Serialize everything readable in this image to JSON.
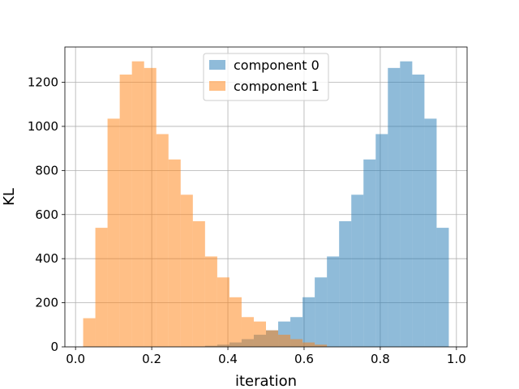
{
  "chart_data": {
    "type": "bar",
    "title": "",
    "xlabel": "iteration",
    "ylabel": "KL",
    "xlim": [
      -0.028,
      1.028
    ],
    "ylim": [
      0,
      1360
    ],
    "grid": true,
    "legend_position": "top-center",
    "bin_width": 0.032,
    "x_ticks": [
      0.0,
      0.2,
      0.4,
      0.6,
      0.8,
      1.0
    ],
    "y_ticks": [
      0,
      200,
      400,
      600,
      800,
      1000,
      1200
    ],
    "series": [
      {
        "name": "component 0",
        "color": "#1f77b4",
        "opacity": 0.5,
        "bin_left": [
          0.34,
          0.372,
          0.404,
          0.436,
          0.468,
          0.5,
          0.532,
          0.564,
          0.596,
          0.628,
          0.66,
          0.692,
          0.724,
          0.756,
          0.788,
          0.82,
          0.852,
          0.884,
          0.916,
          0.948
        ],
        "values": [
          5,
          10,
          20,
          35,
          55,
          75,
          115,
          135,
          225,
          315,
          410,
          570,
          690,
          850,
          965,
          1265,
          1295,
          1235,
          1035,
          540
        ]
      },
      {
        "name": "component 1",
        "color": "#ff7f0e",
        "opacity": 0.5,
        "bin_left": [
          0.02,
          0.052,
          0.084,
          0.116,
          0.148,
          0.18,
          0.212,
          0.244,
          0.276,
          0.308,
          0.34,
          0.372,
          0.404,
          0.436,
          0.468,
          0.5,
          0.532,
          0.564,
          0.596,
          0.628
        ],
        "values": [
          130,
          540,
          1035,
          1235,
          1295,
          1265,
          965,
          850,
          690,
          570,
          410,
          315,
          225,
          135,
          115,
          75,
          55,
          35,
          20,
          10
        ]
      }
    ]
  }
}
